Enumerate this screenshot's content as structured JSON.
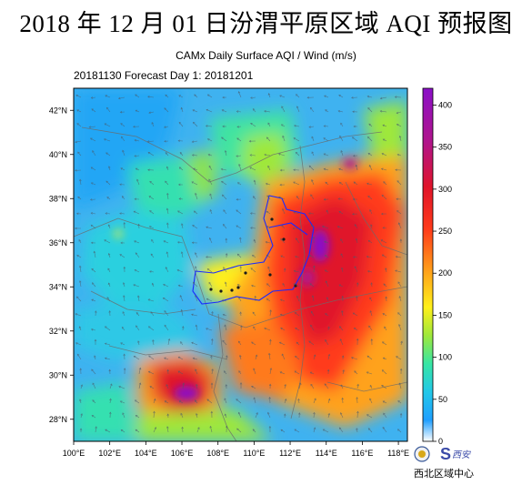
{
  "title": "2018 年 12 月 01 日汾渭平原区域 AQI 预报图",
  "subtitle": "CAMx Daily Surface AQI / Wind (m/s)",
  "forecast_line": "20181130 Forecast Day 1:  20181201",
  "map": {
    "lon_range": [
      100,
      118.5
    ],
    "lat_range": [
      27,
      43
    ],
    "lon_ticks": [
      "100°E",
      "102°E",
      "104°E",
      "106°E",
      "108°E",
      "110°E",
      "112°E",
      "114°E",
      "116°E",
      "118°E"
    ],
    "lat_ticks": [
      "28°N",
      "30°N",
      "32°N",
      "34°N",
      "36°N",
      "38°N",
      "40°N",
      "42°N"
    ]
  },
  "colorbar": {
    "ticks": [
      "0",
      "50",
      "100",
      "150",
      "200",
      "250",
      "300",
      "350",
      "400"
    ],
    "colors": {
      "c0": "#ffffff",
      "c1": "#1f9fff",
      "c2": "#22c8e8",
      "c3": "#37e6a4",
      "c4": "#9fe83a",
      "c5": "#fff01a",
      "c6": "#ffa21a",
      "c7": "#ff3b1a",
      "c8": "#e0142a",
      "c9": "#b0148c",
      "c10": "#8a10c8"
    }
  },
  "logo": {
    "org_text": "西北区域中心",
    "brand_text": "西安"
  }
}
